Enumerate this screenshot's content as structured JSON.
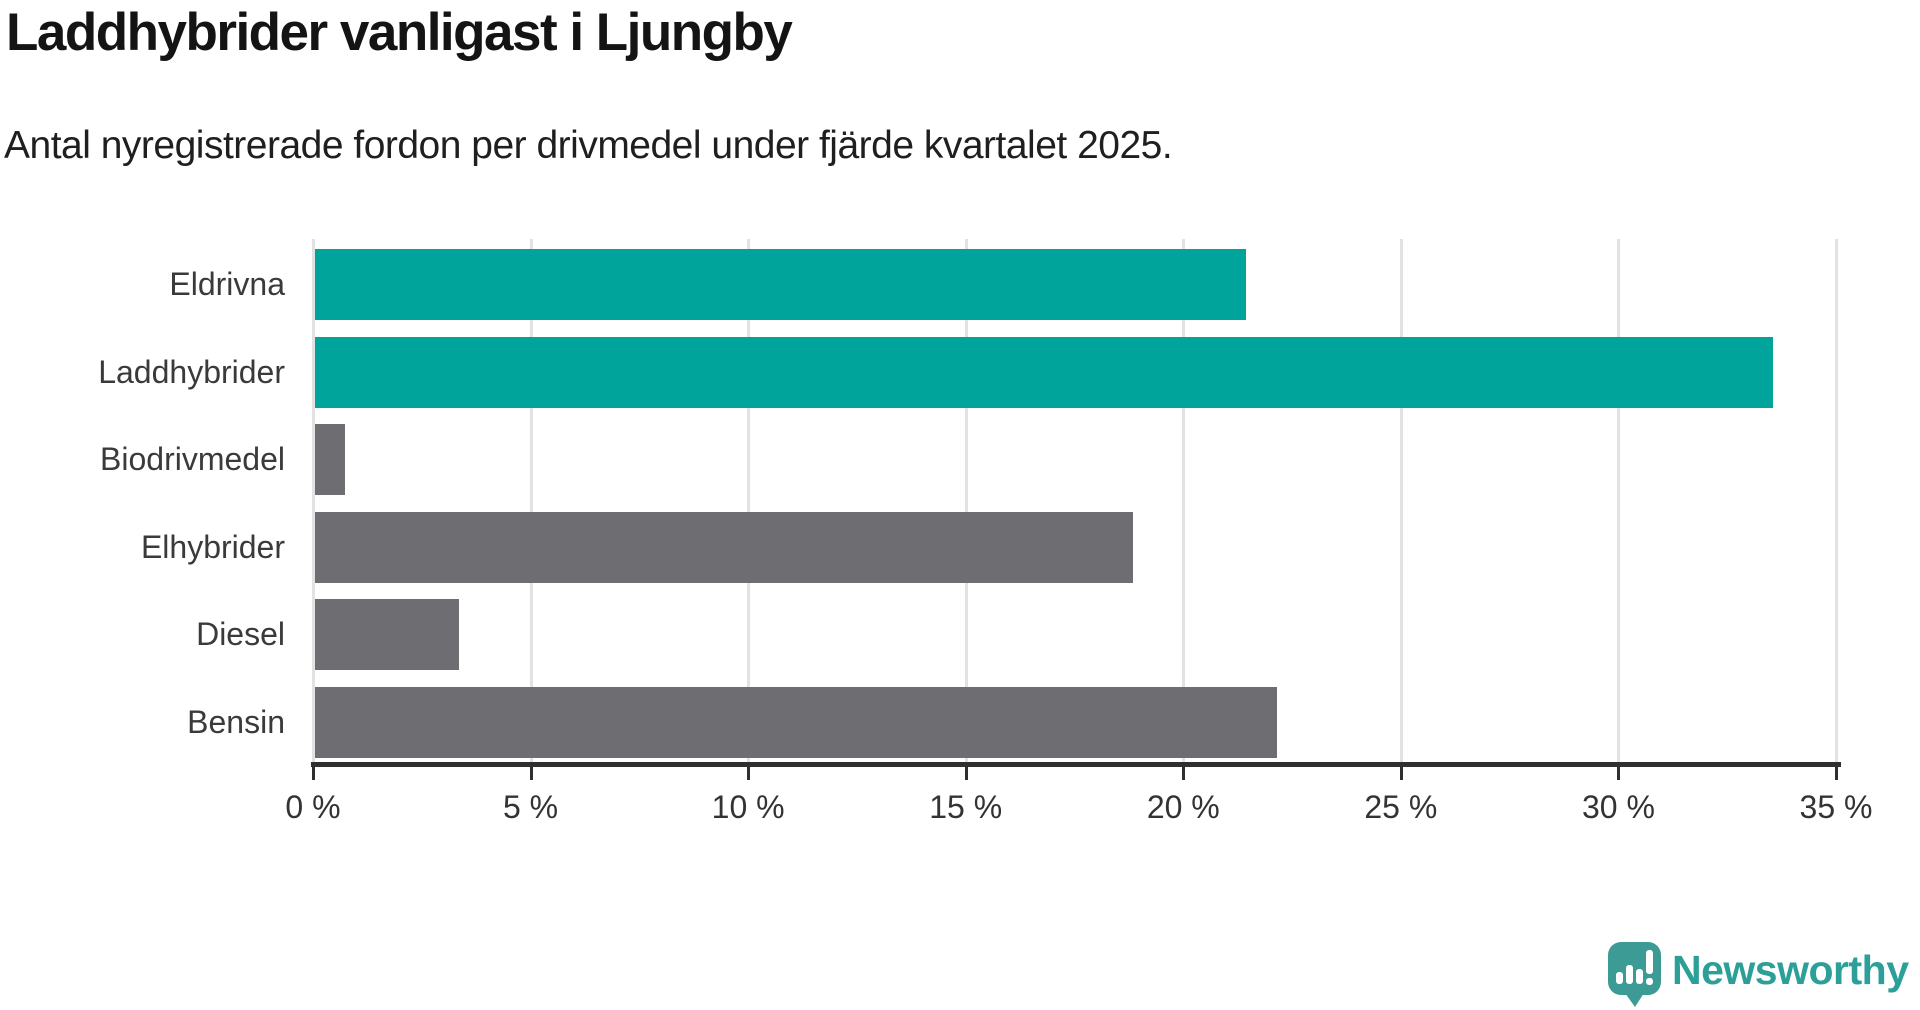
{
  "header": {
    "title": "Laddhybrider vanligast i Ljungby",
    "subtitle": "Antal nyregistrerade fordon per drivmedel under fjärde kvartalet 2025."
  },
  "chart_data": {
    "type": "bar",
    "orientation": "horizontal",
    "title": "Laddhybrider vanligast i Ljungby",
    "subtitle": "Antal nyregistrerade fordon per drivmedel under fjärde kvartalet 2025.",
    "categories": [
      "Eldrivna",
      "Laddhybrider",
      "Biodrivmedel",
      "Elhybrider",
      "Diesel",
      "Bensin"
    ],
    "values": [
      21.4,
      33.5,
      0.7,
      18.8,
      3.3,
      22.1
    ],
    "unit": "%",
    "bar_colors": [
      "#00a49a",
      "#00a49a",
      "#6d6d72",
      "#6d6d72",
      "#6d6d72",
      "#6d6d72"
    ],
    "xlim": [
      0,
      35
    ],
    "x_ticks": [
      0,
      5,
      10,
      15,
      20,
      25,
      30,
      35
    ],
    "x_tick_labels": [
      "0 %",
      "5 %",
      "10 %",
      "15 %",
      "20 %",
      "25 %",
      "30 %",
      "35 %"
    ],
    "grid": "vertical-gridlines-on",
    "legend": "none",
    "accent_color": "#00a49a",
    "muted_bar_color": "#6d6d72",
    "gridline_color": "#e2e2e2",
    "axis_color": "#2f2f2f"
  },
  "footer": {
    "brand": "Newsworthy",
    "brand_color": "#2ca098",
    "brand_mark_color": "#3d9b96",
    "brand_mark_icon": "speech-bubble-bar-chart-exclamation"
  }
}
